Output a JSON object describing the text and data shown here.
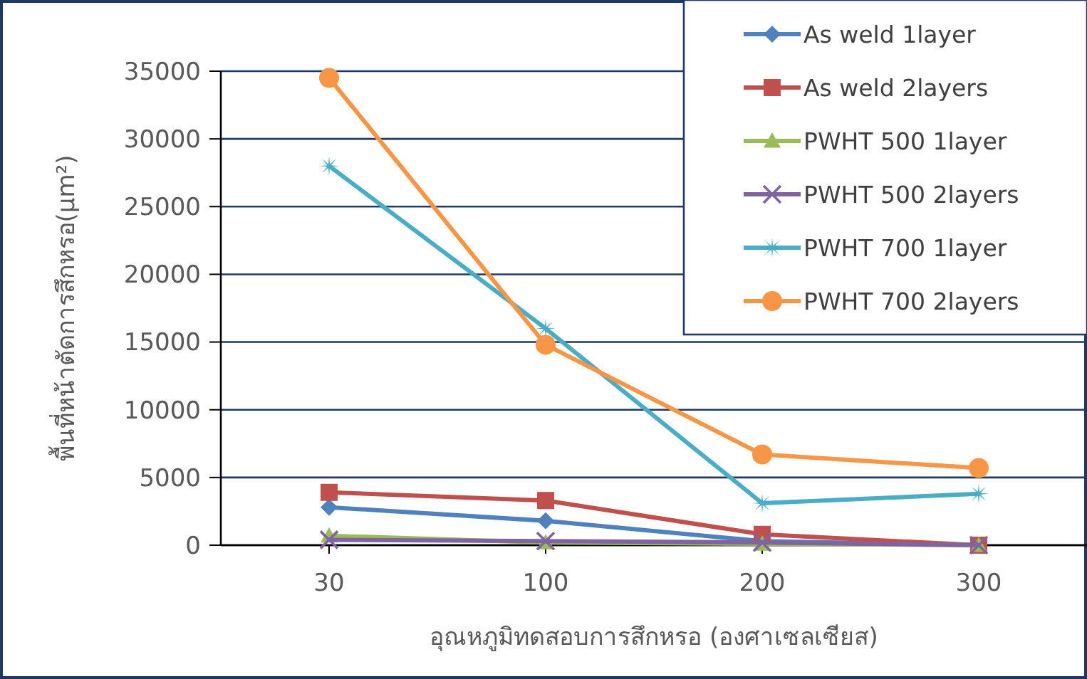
{
  "chart_data": {
    "type": "line",
    "xlabel": "อุณหภูมิทดสอบการสึกหรอ (องศาเซลเซียส)",
    "ylabel": "พื้นที่หน้าตัดการสึกหรอ(µm²)",
    "categories": [
      "30",
      "100",
      "200",
      "300"
    ],
    "ylim": [
      0,
      35000
    ],
    "yticks": [
      0,
      5000,
      10000,
      15000,
      20000,
      25000,
      30000,
      35000
    ],
    "grid": "y",
    "legend": "top right",
    "series": [
      {
        "name": "As weld 1layer",
        "color": "#4f81bd",
        "marker": "diamond",
        "values": [
          2800,
          1800,
          300,
          0
        ]
      },
      {
        "name": "As weld 2layers",
        "color": "#c0504d",
        "marker": "square",
        "values": [
          3900,
          3300,
          800,
          0
        ]
      },
      {
        "name": "PWHT 500 1layer",
        "color": "#9bbb59",
        "marker": "triangle",
        "values": [
          700,
          200,
          100,
          0
        ]
      },
      {
        "name": "PWHT 500 2layers",
        "color": "#8064a2",
        "marker": "cross",
        "values": [
          400,
          300,
          200,
          0
        ]
      },
      {
        "name": "PWHT 700 1layer",
        "color": "#4bacc6",
        "marker": "star",
        "values": [
          28000,
          16000,
          3100,
          3800
        ]
      },
      {
        "name": "PWHT 700 2layers",
        "color": "#f79646",
        "marker": "circle",
        "values": [
          34500,
          14800,
          6700,
          5700
        ]
      }
    ]
  }
}
